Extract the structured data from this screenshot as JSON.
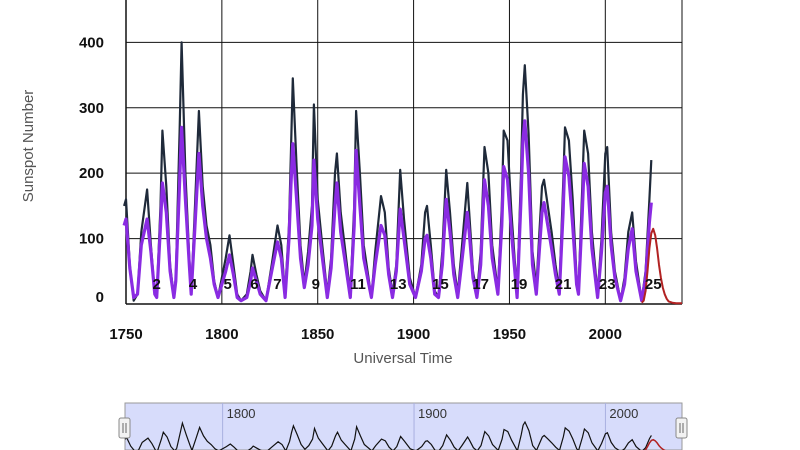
{
  "chart_data": {
    "type": "line",
    "xlabel": "Universal Time",
    "ylabel": "Sunspot Number",
    "xlim": [
      1750,
      2040
    ],
    "ylim": [
      0,
      480
    ],
    "x_ticks": [
      1750,
      1800,
      1850,
      1900,
      1950,
      2000
    ],
    "y_ticks": [
      0,
      100,
      200,
      300,
      400
    ],
    "grid": true,
    "cycle_labels": [
      {
        "label": "2",
        "x": 1766
      },
      {
        "label": "4",
        "x": 1785
      },
      {
        "label": "5",
        "x": 1803
      },
      {
        "label": "6",
        "x": 1817
      },
      {
        "label": "7",
        "x": 1829
      },
      {
        "label": "9",
        "x": 1849
      },
      {
        "label": "11",
        "x": 1871
      },
      {
        "label": "13",
        "x": 1892
      },
      {
        "label": "15",
        "x": 1914
      },
      {
        "label": "17",
        "x": 1935
      },
      {
        "label": "19",
        "x": 1955
      },
      {
        "label": "21",
        "x": 1978
      },
      {
        "label": "23",
        "x": 2001
      },
      {
        "label": "25",
        "x": 2025
      }
    ],
    "series": [
      {
        "name": "",
        "role": "monthly",
        "color": "#1f2a3a",
        "points": [
          [
            1749,
            150
          ],
          [
            1750,
            160
          ],
          [
            1752,
            60
          ],
          [
            1754,
            5
          ],
          [
            1756,
            15
          ],
          [
            1758,
            110
          ],
          [
            1761,
            175
          ],
          [
            1763,
            90
          ],
          [
            1765,
            15
          ],
          [
            1766,
            10
          ],
          [
            1768,
            150
          ],
          [
            1769,
            265
          ],
          [
            1771,
            180
          ],
          [
            1773,
            60
          ],
          [
            1775,
            10
          ],
          [
            1776,
            40
          ],
          [
            1778,
            270
          ],
          [
            1779,
            400
          ],
          [
            1781,
            200
          ],
          [
            1783,
            70
          ],
          [
            1784,
            15
          ],
          [
            1786,
            150
          ],
          [
            1788,
            295
          ],
          [
            1790,
            180
          ],
          [
            1792,
            120
          ],
          [
            1794,
            90
          ],
          [
            1796,
            35
          ],
          [
            1798,
            10
          ],
          [
            1802,
            70
          ],
          [
            1804,
            105
          ],
          [
            1806,
            60
          ],
          [
            1808,
            15
          ],
          [
            1810,
            5
          ],
          [
            1813,
            15
          ],
          [
            1815,
            50
          ],
          [
            1816,
            75
          ],
          [
            1818,
            45
          ],
          [
            1820,
            20
          ],
          [
            1823,
            5
          ],
          [
            1826,
            60
          ],
          [
            1829,
            120
          ],
          [
            1831,
            90
          ],
          [
            1833,
            15
          ],
          [
            1835,
            120
          ],
          [
            1836,
            230
          ],
          [
            1837,
            345
          ],
          [
            1839,
            210
          ],
          [
            1841,
            90
          ],
          [
            1843,
            30
          ],
          [
            1845,
            80
          ],
          [
            1847,
            150
          ],
          [
            1848,
            305
          ],
          [
            1850,
            160
          ],
          [
            1852,
            100
          ],
          [
            1855,
            15
          ],
          [
            1857,
            70
          ],
          [
            1859,
            200
          ],
          [
            1860,
            230
          ],
          [
            1862,
            140
          ],
          [
            1864,
            90
          ],
          [
            1867,
            15
          ],
          [
            1869,
            150
          ],
          [
            1870,
            295
          ],
          [
            1872,
            200
          ],
          [
            1874,
            90
          ],
          [
            1878,
            10
          ],
          [
            1880,
            80
          ],
          [
            1883,
            165
          ],
          [
            1885,
            140
          ],
          [
            1887,
            55
          ],
          [
            1889,
            15
          ],
          [
            1891,
            60
          ],
          [
            1893,
            205
          ],
          [
            1895,
            130
          ],
          [
            1898,
            40
          ],
          [
            1901,
            10
          ],
          [
            1904,
            60
          ],
          [
            1906,
            140
          ],
          [
            1907,
            150
          ],
          [
            1909,
            90
          ],
          [
            1911,
            20
          ],
          [
            1913,
            10
          ],
          [
            1915,
            80
          ],
          [
            1917,
            205
          ],
          [
            1919,
            140
          ],
          [
            1921,
            60
          ],
          [
            1923,
            15
          ],
          [
            1925,
            80
          ],
          [
            1928,
            185
          ],
          [
            1929,
            140
          ],
          [
            1931,
            50
          ],
          [
            1933,
            15
          ],
          [
            1935,
            80
          ],
          [
            1937,
            240
          ],
          [
            1939,
            200
          ],
          [
            1941,
            90
          ],
          [
            1944,
            20
          ],
          [
            1946,
            150
          ],
          [
            1947,
            265
          ],
          [
            1949,
            250
          ],
          [
            1951,
            140
          ],
          [
            1954,
            15
          ],
          [
            1956,
            200
          ],
          [
            1957,
            320
          ],
          [
            1958,
            365
          ],
          [
            1960,
            260
          ],
          [
            1962,
            80
          ],
          [
            1964,
            25
          ],
          [
            1967,
            180
          ],
          [
            1968,
            190
          ],
          [
            1970,
            150
          ],
          [
            1972,
            110
          ],
          [
            1974,
            60
          ],
          [
            1976,
            20
          ],
          [
            1978,
            180
          ],
          [
            1979,
            270
          ],
          [
            1981,
            250
          ],
          [
            1983,
            160
          ],
          [
            1985,
            40
          ],
          [
            1986,
            20
          ],
          [
            1988,
            180
          ],
          [
            1989,
            265
          ],
          [
            1991,
            230
          ],
          [
            1993,
            110
          ],
          [
            1996,
            15
          ],
          [
            1998,
            100
          ],
          [
            2000,
            230
          ],
          [
            2001,
            240
          ],
          [
            2003,
            110
          ],
          [
            2005,
            50
          ],
          [
            2008,
            5
          ],
          [
            2010,
            40
          ],
          [
            2012,
            110
          ],
          [
            2014,
            140
          ],
          [
            2016,
            65
          ],
          [
            2019,
            5
          ],
          [
            2021,
            50
          ],
          [
            2023,
            160
          ],
          [
            2024,
            220
          ]
        ]
      },
      {
        "name": "",
        "role": "smoothed",
        "color": "#8a2be2",
        "points": [
          [
            1749,
            120
          ],
          [
            1750,
            130
          ],
          [
            1752,
            55
          ],
          [
            1754,
            10
          ],
          [
            1756,
            15
          ],
          [
            1758,
            90
          ],
          [
            1761,
            130
          ],
          [
            1763,
            80
          ],
          [
            1765,
            15
          ],
          [
            1766,
            10
          ],
          [
            1768,
            120
          ],
          [
            1769,
            185
          ],
          [
            1771,
            140
          ],
          [
            1773,
            50
          ],
          [
            1775,
            10
          ],
          [
            1776,
            35
          ],
          [
            1778,
            190
          ],
          [
            1779,
            270
          ],
          [
            1781,
            160
          ],
          [
            1783,
            60
          ],
          [
            1784,
            15
          ],
          [
            1786,
            120
          ],
          [
            1788,
            230
          ],
          [
            1790,
            150
          ],
          [
            1792,
            100
          ],
          [
            1794,
            70
          ],
          [
            1796,
            30
          ],
          [
            1798,
            10
          ],
          [
            1802,
            50
          ],
          [
            1804,
            75
          ],
          [
            1806,
            45
          ],
          [
            1808,
            10
          ],
          [
            1810,
            5
          ],
          [
            1813,
            10
          ],
          [
            1815,
            35
          ],
          [
            1816,
            55
          ],
          [
            1818,
            35
          ],
          [
            1820,
            15
          ],
          [
            1823,
            5
          ],
          [
            1826,
            50
          ],
          [
            1829,
            95
          ],
          [
            1831,
            70
          ],
          [
            1833,
            10
          ],
          [
            1835,
            100
          ],
          [
            1836,
            180
          ],
          [
            1837,
            245
          ],
          [
            1839,
            160
          ],
          [
            1841,
            70
          ],
          [
            1843,
            25
          ],
          [
            1845,
            60
          ],
          [
            1847,
            120
          ],
          [
            1848,
            220
          ],
          [
            1850,
            130
          ],
          [
            1852,
            80
          ],
          [
            1855,
            10
          ],
          [
            1857,
            55
          ],
          [
            1859,
            150
          ],
          [
            1860,
            185
          ],
          [
            1862,
            110
          ],
          [
            1864,
            70
          ],
          [
            1867,
            10
          ],
          [
            1869,
            120
          ],
          [
            1870,
            235
          ],
          [
            1872,
            150
          ],
          [
            1874,
            70
          ],
          [
            1878,
            10
          ],
          [
            1880,
            60
          ],
          [
            1883,
            120
          ],
          [
            1885,
            105
          ],
          [
            1887,
            45
          ],
          [
            1889,
            10
          ],
          [
            1891,
            50
          ],
          [
            1893,
            145
          ],
          [
            1895,
            100
          ],
          [
            1898,
            30
          ],
          [
            1901,
            10
          ],
          [
            1904,
            50
          ],
          [
            1906,
            100
          ],
          [
            1907,
            105
          ],
          [
            1909,
            70
          ],
          [
            1911,
            15
          ],
          [
            1913,
            10
          ],
          [
            1915,
            60
          ],
          [
            1917,
            160
          ],
          [
            1919,
            110
          ],
          [
            1921,
            45
          ],
          [
            1923,
            10
          ],
          [
            1925,
            60
          ],
          [
            1928,
            140
          ],
          [
            1929,
            110
          ],
          [
            1931,
            40
          ],
          [
            1933,
            10
          ],
          [
            1935,
            60
          ],
          [
            1937,
            190
          ],
          [
            1939,
            150
          ],
          [
            1941,
            70
          ],
          [
            1944,
            15
          ],
          [
            1946,
            120
          ],
          [
            1947,
            210
          ],
          [
            1949,
            190
          ],
          [
            1951,
            110
          ],
          [
            1954,
            10
          ],
          [
            1956,
            160
          ],
          [
            1957,
            250
          ],
          [
            1958,
            280
          ],
          [
            1960,
            200
          ],
          [
            1962,
            60
          ],
          [
            1964,
            15
          ],
          [
            1967,
            140
          ],
          [
            1968,
            155
          ],
          [
            1970,
            120
          ],
          [
            1972,
            85
          ],
          [
            1974,
            45
          ],
          [
            1976,
            15
          ],
          [
            1978,
            140
          ],
          [
            1979,
            225
          ],
          [
            1981,
            195
          ],
          [
            1983,
            120
          ],
          [
            1985,
            30
          ],
          [
            1986,
            15
          ],
          [
            1988,
            140
          ],
          [
            1989,
            215
          ],
          [
            1991,
            180
          ],
          [
            1993,
            85
          ],
          [
            1996,
            10
          ],
          [
            1998,
            80
          ],
          [
            2000,
            170
          ],
          [
            2001,
            180
          ],
          [
            2003,
            90
          ],
          [
            2005,
            40
          ],
          [
            2008,
            5
          ],
          [
            2010,
            30
          ],
          [
            2012,
            85
          ],
          [
            2014,
            115
          ],
          [
            2016,
            50
          ],
          [
            2019,
            5
          ],
          [
            2021,
            40
          ],
          [
            2023,
            125
          ],
          [
            2024,
            155
          ]
        ]
      },
      {
        "name": "",
        "role": "predicted",
        "color": "#b22222",
        "points": [
          [
            2019,
            2
          ],
          [
            2020,
            5
          ],
          [
            2021,
            20
          ],
          [
            2022,
            50
          ],
          [
            2023,
            85
          ],
          [
            2024,
            108
          ],
          [
            2025,
            115
          ],
          [
            2026,
            105
          ],
          [
            2027,
            85
          ],
          [
            2028,
            60
          ],
          [
            2029,
            40
          ],
          [
            2030,
            25
          ],
          [
            2031,
            15
          ],
          [
            2032,
            8
          ],
          [
            2033,
            4
          ],
          [
            2035,
            2
          ],
          [
            2037,
            1
          ],
          [
            2040,
            1
          ]
        ]
      }
    ]
  },
  "navigator": {
    "x_labels": [
      1800,
      1900,
      2000
    ],
    "range_fill": "#d7dcfb",
    "line_color": "#111111",
    "predicted_color": "#b22222"
  }
}
